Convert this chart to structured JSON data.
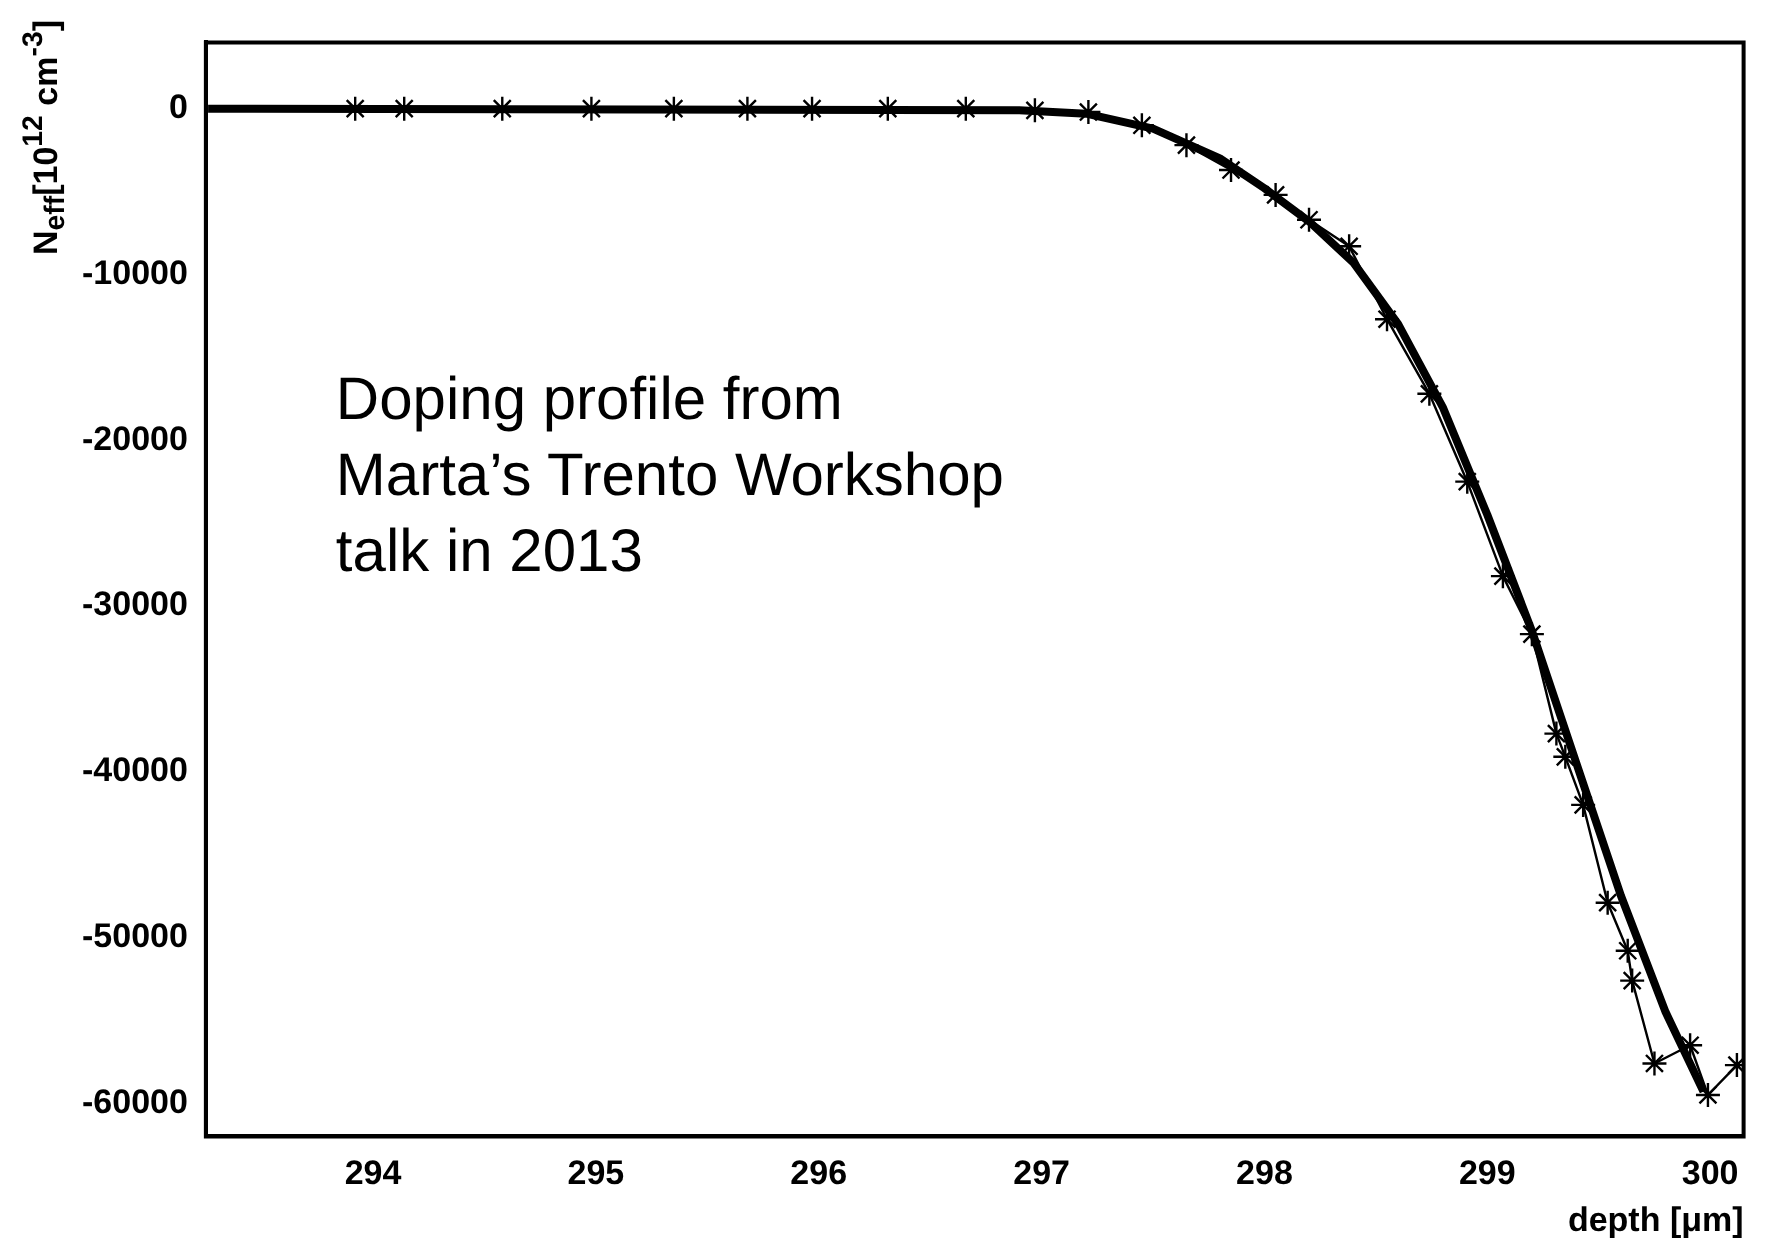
{
  "chart_data": {
    "type": "line",
    "xlabel": "depth [μm]",
    "ylabel": "N$_{eff}$[10$^{12}$ cm$^{-3}$]",
    "xlim": [
      293.25,
      300.15
    ],
    "ylim": [
      -62000,
      4000
    ],
    "xticks": [
      294,
      295,
      296,
      297,
      298,
      299,
      300
    ],
    "yticks": [
      0,
      -10000,
      -20000,
      -30000,
      -40000,
      -50000,
      -60000
    ],
    "annotations": [
      "Doping profile from\nMarta’s Trento Workshop\ntalk in 2013"
    ],
    "series": [
      {
        "color": "#000000",
        "marker": "none",
        "x": [
          293.26,
          296.9,
          297.2,
          297.5,
          297.8,
          298.0,
          298.2,
          298.4,
          298.6,
          298.8,
          299.0,
          299.2,
          299.4,
          299.6,
          299.8,
          299.97
        ],
        "values": [
          0,
          -100,
          -300,
          -1200,
          -3000,
          -4800,
          -6800,
          -9300,
          -13000,
          -18000,
          -24500,
          -31500,
          -39500,
          -47500,
          -54500,
          -59300
        ]
      },
      {
        "color": "#000000",
        "marker": "cross",
        "x": [
          293.92,
          294.14,
          294.58,
          294.98,
          295.35,
          295.68,
          295.97,
          296.31,
          296.66,
          296.97,
          297.21,
          297.45,
          297.65,
          297.85,
          298.05,
          298.2,
          298.38,
          298.55,
          298.74,
          298.91,
          299.07,
          299.2,
          299.31,
          299.35,
          299.43,
          299.54,
          299.63,
          299.65,
          299.75,
          299.91,
          299.99,
          300.12
        ],
        "values": [
          0,
          0,
          0,
          0,
          0,
          0,
          0,
          0,
          0,
          -100,
          -200,
          -1000,
          -2200,
          -3700,
          -5200,
          -6700,
          -8300,
          -12700,
          -17200,
          -22500,
          -28200,
          -31700,
          -37700,
          -39100,
          -42000,
          -47900,
          -50800,
          -52600,
          -57600,
          -56500,
          -59500,
          -57700
        ]
      }
    ]
  }
}
